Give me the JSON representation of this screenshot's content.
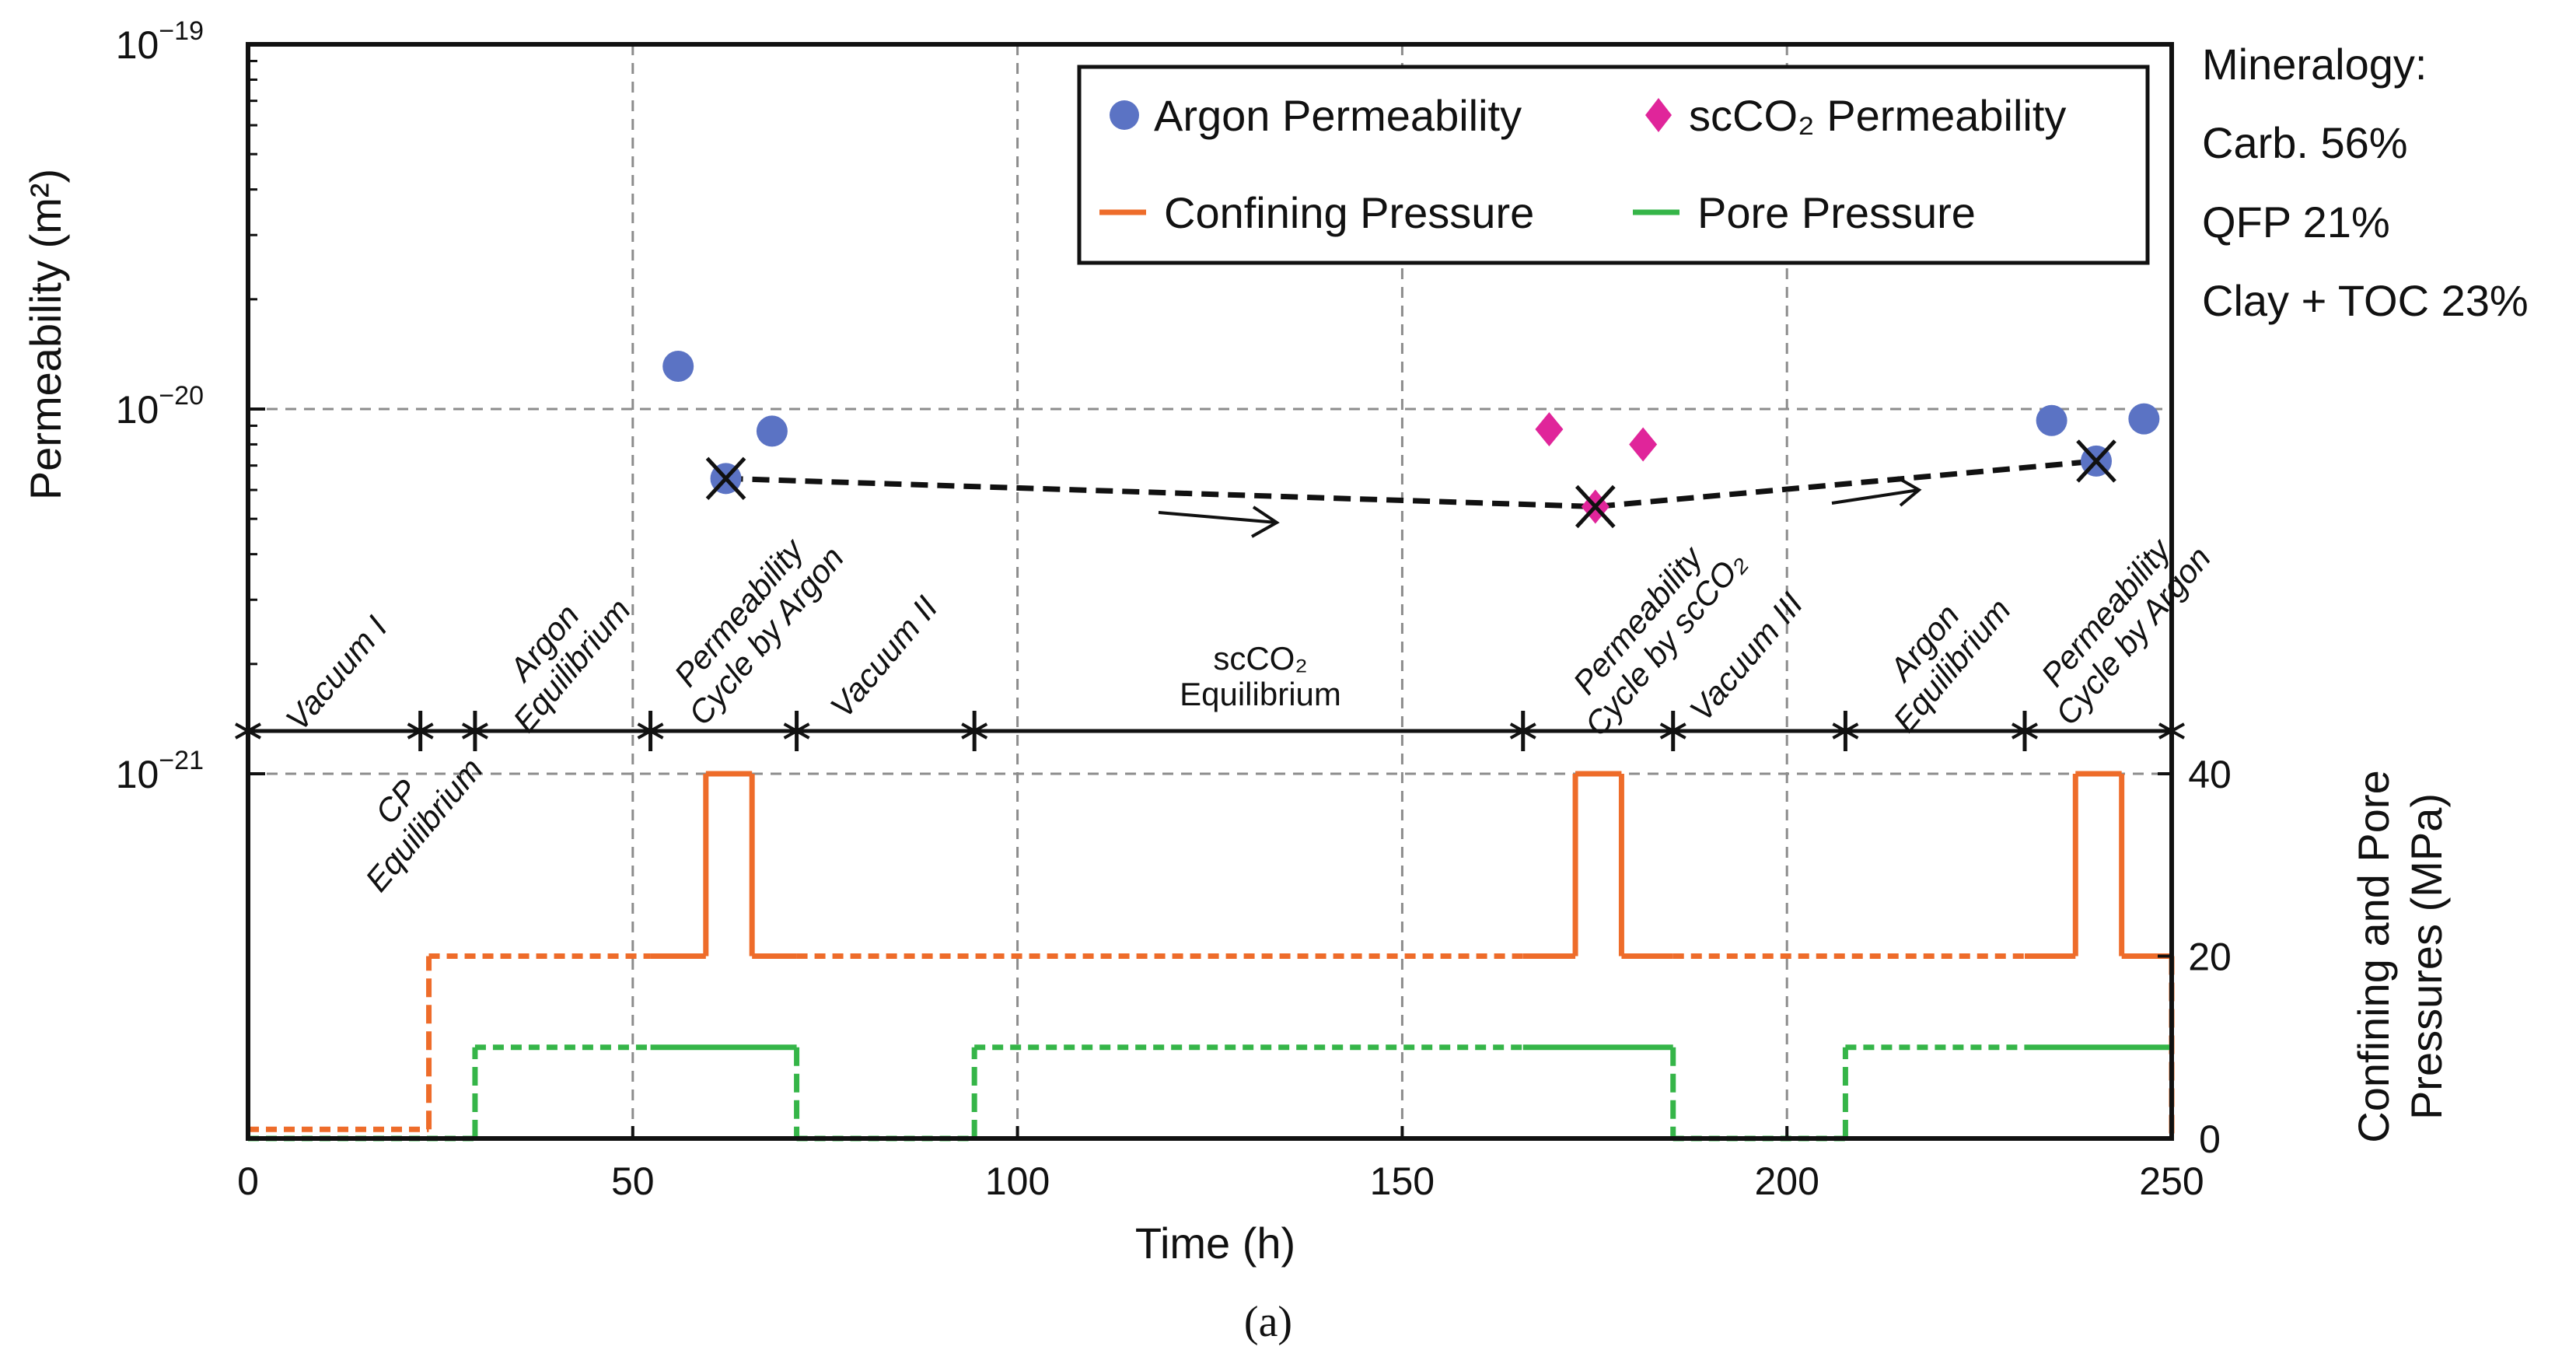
{
  "chart_data": {
    "type": "scatter",
    "caption": "(a)",
    "xlabel": "Time (h)",
    "ylabel": "Permeability (m²)",
    "y2label": [
      "Confining and Pore",
      "Pressures (MPa)"
    ],
    "xlim": [
      0,
      250
    ],
    "ylim_log": [
      -22,
      -19
    ],
    "y2lim": [
      0,
      40
    ],
    "x_ticks": [
      "0",
      "50",
      "100",
      "150",
      "200",
      "250"
    ],
    "y_ticks": [
      {
        "base": "10",
        "exp": "-19"
      },
      {
        "base": "10",
        "exp": "-20"
      },
      {
        "base": "10",
        "exp": "-21"
      }
    ],
    "y2_ticks": [
      "40",
      "20",
      "0"
    ],
    "grid": true,
    "legend_position": "top-right",
    "legend": {
      "argon": "Argon Permeability",
      "scco2": "scCO₂ Permeability",
      "confining": "Confining Pressure",
      "pore": "Pore Pressure"
    },
    "colors": {
      "argon": "#5b73c4",
      "scco2": "#e0259a",
      "confining": "#ee6c2a",
      "pore": "#35b548",
      "grid": "#8c8c8c"
    },
    "series": [
      {
        "name": "Argon Permeability",
        "x": [
          55.9,
          68.1,
          62.1,
          234.4,
          246.4,
          240.2
        ],
        "y": [
          1.31e-20,
          8.7e-21,
          6.45e-21,
          9.3e-21,
          9.4e-21,
          7.2e-21
        ],
        "crossed": [
          false,
          false,
          true,
          false,
          false,
          true
        ]
      },
      {
        "name": "scCO₂ Permeability",
        "x": [
          169.1,
          181.3,
          175.1
        ],
        "y": [
          8.8e-21,
          8e-21,
          5.4e-21
        ],
        "crossed": [
          false,
          false,
          true
        ]
      },
      {
        "name": "Confining Pressure",
        "steps": [
          [
            0,
            1
          ],
          [
            23.5,
            20
          ],
          [
            59.5,
            40
          ],
          [
            65.5,
            20
          ],
          [
            172.5,
            40
          ],
          [
            178.5,
            20
          ],
          [
            237.5,
            40
          ],
          [
            243.5,
            20
          ],
          [
            250,
            0
          ]
        ],
        "solid_ranges": [
          [
            52.3,
            71.3
          ],
          [
            165.7,
            185.2
          ],
          [
            230.9,
            250
          ]
        ]
      },
      {
        "name": "Pore Pressure",
        "steps": [
          [
            0,
            0
          ],
          [
            29.5,
            10
          ],
          [
            71.3,
            0
          ],
          [
            94.4,
            10
          ],
          [
            185.2,
            0
          ],
          [
            207.6,
            10
          ],
          [
            250,
            10
          ]
        ],
        "solid_ranges": [
          [
            52.3,
            71.3
          ],
          [
            165.7,
            185.2
          ],
          [
            230.9,
            250
          ]
        ]
      }
    ],
    "trend": {
      "x": [
        62.1,
        175.1,
        240.2
      ],
      "y": [
        6.45e-21,
        5.4e-21,
        7.2e-21
      ]
    },
    "phase_boundaries": [
      0,
      22.4,
      29.5,
      52.3,
      71.3,
      94.4,
      165.7,
      185.2,
      207.6,
      230.9,
      250
    ],
    "phases": [
      [
        "Vacuum I"
      ],
      [
        "CP",
        "Equilibrium"
      ],
      [
        "Argon",
        "Equilibrium"
      ],
      [
        "Permeability",
        "Cycle by Argon"
      ],
      [
        "Vacuum II"
      ],
      [
        "scCO₂",
        "Equilibrium"
      ],
      [
        "Permeability",
        "Cycle by scCO₂"
      ],
      [
        "Vacuum III"
      ],
      [
        "Argon",
        "Equilibrium"
      ],
      [
        "Permeability",
        "Cycle by Argon"
      ]
    ],
    "annotations": {
      "mineralogy": [
        "Mineralogy:",
        "Carb. 56%",
        "QFP 21%",
        "Clay + TOC 23%"
      ]
    }
  }
}
